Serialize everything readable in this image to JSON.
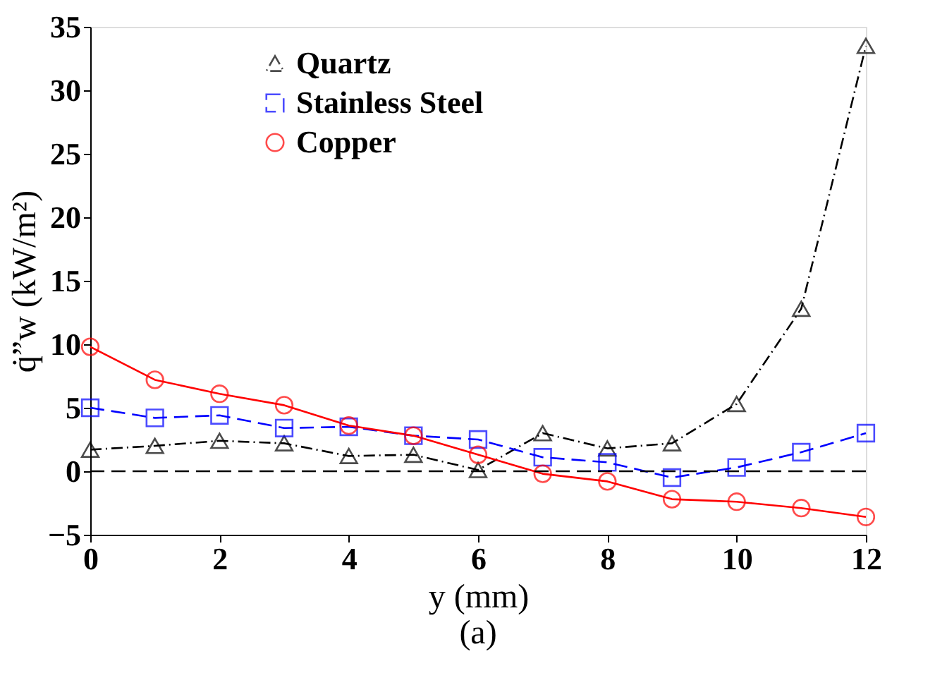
{
  "chart_data": {
    "type": "line",
    "xlabel": "y (mm)",
    "ylabel": "q̇”w (kW/m²)",
    "x": [
      0,
      1,
      2,
      3,
      4,
      5,
      6,
      7,
      8,
      9,
      10,
      11,
      12
    ],
    "series": [
      {
        "name": "Quartz",
        "color": "#000000",
        "marker": "triangle",
        "line_style": "dotted",
        "values": [
          1.7,
          2.0,
          2.4,
          2.2,
          1.2,
          1.3,
          0.1,
          3.0,
          1.8,
          2.2,
          5.3,
          12.8,
          33.5
        ]
      },
      {
        "name": "Stainless Steel",
        "color": "#0000ff",
        "marker": "square",
        "line_style": "dashed",
        "values": [
          5.0,
          4.2,
          4.4,
          3.4,
          3.5,
          2.8,
          2.5,
          1.1,
          0.7,
          -0.5,
          0.3,
          1.5,
          3.0
        ]
      },
      {
        "name": "Copper",
        "color": "#ff0000",
        "marker": "circle",
        "line_style": "solid",
        "values": [
          9.8,
          7.2,
          6.1,
          5.2,
          3.6,
          2.8,
          1.3,
          -0.2,
          -0.8,
          -2.2,
          -2.4,
          -2.9,
          -3.6
        ]
      }
    ],
    "xlim": [
      0,
      12
    ],
    "xticks": [
      0,
      2,
      4,
      6,
      8,
      10,
      12
    ],
    "ylim": [
      -5,
      35
    ],
    "yticks": [
      -5,
      0,
      5,
      10,
      15,
      20,
      25,
      30,
      35
    ],
    "ref_lines": [
      {
        "axis": "y",
        "value": 0,
        "color": "#000000",
        "line_style": "dashed"
      }
    ],
    "annotations": [
      "(a)"
    ],
    "legend": "top left",
    "grid": false
  }
}
